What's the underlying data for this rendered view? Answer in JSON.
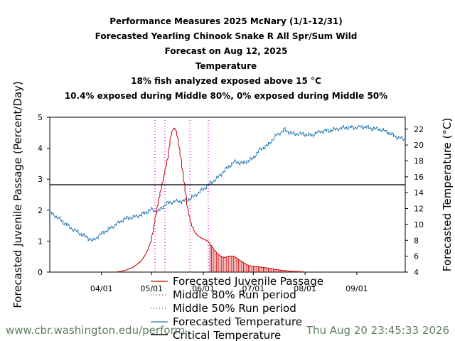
{
  "chart_data": {
    "type": "line",
    "title_lines": [
      "Performance Measures 2025 McNary (1/1-12/31)",
      "Forecasted Yearling Chinook Snake R All Spr/Sum Wild",
      "Forecast on Aug 12, 2025",
      "Temperature",
      "18% fish analyzed exposed above 15 °C",
      "10.4% exposed during Middle 80%, 0% exposed during Middle 50%"
    ],
    "ylabel_left": "Forecasted Juvenile Passage (Percent/Day)",
    "ylabel_right": "Forecasted Temperature (°C)",
    "x_domain": [
      "2025-03-01",
      "2025-09-30"
    ],
    "x_ticks": [
      "04/01",
      "05/01",
      "06/01",
      "07/01",
      "08/01",
      "09/01"
    ],
    "ylim_left": [
      0,
      5
    ],
    "y_ticks_left": [
      "0",
      "1",
      "2",
      "3",
      "4",
      "5"
    ],
    "ylim_right": [
      4,
      23.5
    ],
    "y_ticks_right": [
      "4",
      "6",
      "8",
      "10",
      "12",
      "14",
      "16",
      "18",
      "20",
      "22"
    ],
    "critical_temperature": 15,
    "middle_80_run_period": [
      "2025-05-03",
      "2025-06-04"
    ],
    "middle_50_run_period": [
      "2025-05-09",
      "2025-05-24"
    ],
    "series": [
      {
        "name": "Forecasted Juvenile Passage",
        "color": "#cc0000",
        "x": [
          "2025-04-10",
          "2025-04-15",
          "2025-04-20",
          "2025-04-25",
          "2025-04-28",
          "2025-05-01",
          "2025-05-03",
          "2025-05-05",
          "2025-05-07",
          "2025-05-09",
          "2025-05-11",
          "2025-05-12",
          "2025-05-13",
          "2025-05-14",
          "2025-05-15",
          "2025-05-16",
          "2025-05-17",
          "2025-05-19",
          "2025-05-21",
          "2025-05-23",
          "2025-05-25",
          "2025-05-27",
          "2025-05-29",
          "2025-05-31",
          "2025-06-02",
          "2025-06-04",
          "2025-06-06",
          "2025-06-08",
          "2025-06-10",
          "2025-06-12",
          "2025-06-14",
          "2025-06-16",
          "2025-06-18",
          "2025-06-20",
          "2025-06-22",
          "2025-06-24",
          "2025-06-26",
          "2025-06-28",
          "2025-06-30",
          "2025-07-03",
          "2025-07-06",
          "2025-07-10",
          "2025-07-14",
          "2025-07-18",
          "2025-07-22",
          "2025-07-26",
          "2025-07-31"
        ],
        "values": [
          0.0,
          0.05,
          0.15,
          0.35,
          0.6,
          1.0,
          1.6,
          2.2,
          2.7,
          3.2,
          3.7,
          4.1,
          4.45,
          4.6,
          4.65,
          4.55,
          4.3,
          3.6,
          2.8,
          2.0,
          1.55,
          1.3,
          1.17,
          1.1,
          1.05,
          1.0,
          0.85,
          0.7,
          0.58,
          0.5,
          0.47,
          0.5,
          0.52,
          0.5,
          0.42,
          0.35,
          0.28,
          0.22,
          0.19,
          0.18,
          0.16,
          0.13,
          0.09,
          0.06,
          0.04,
          0.02,
          0.01
        ]
      },
      {
        "name": "Middle 80% Run period",
        "color": "#cc00cc"
      },
      {
        "name": "Middle 50% Run period",
        "color": "#cc00cc"
      },
      {
        "name": "Forecasted Temperature",
        "color": "#1f78b4",
        "x": [
          "2025-03-01",
          "2025-03-05",
          "2025-03-10",
          "2025-03-15",
          "2025-03-20",
          "2025-03-25",
          "2025-03-27",
          "2025-03-29",
          "2025-04-01",
          "2025-04-05",
          "2025-04-10",
          "2025-04-15",
          "2025-04-20",
          "2025-04-25",
          "2025-05-01",
          "2025-05-05",
          "2025-05-10",
          "2025-05-15",
          "2025-05-20",
          "2025-05-25",
          "2025-06-01",
          "2025-06-05",
          "2025-06-10",
          "2025-06-15",
          "2025-06-20",
          "2025-06-25",
          "2025-07-01",
          "2025-07-05",
          "2025-07-10",
          "2025-07-15",
          "2025-07-20",
          "2025-07-25",
          "2025-07-31",
          "2025-08-05",
          "2025-08-10",
          "2025-08-15",
          "2025-08-20",
          "2025-08-25",
          "2025-08-31",
          "2025-09-05",
          "2025-09-10",
          "2025-09-15",
          "2025-09-20",
          "2025-09-25",
          "2025-09-30"
        ],
        "values": [
          11.6,
          11.0,
          10.2,
          9.4,
          8.8,
          8.2,
          7.9,
          8.3,
          8.8,
          9.3,
          10.0,
          10.7,
          10.9,
          11.2,
          11.9,
          11.6,
          12.6,
          12.9,
          12.9,
          13.3,
          14.4,
          15.1,
          15.9,
          17.0,
          17.9,
          17.7,
          18.3,
          19.4,
          20.0,
          21.2,
          21.9,
          21.4,
          21.4,
          21.2,
          21.7,
          21.8,
          22.0,
          22.2,
          22.2,
          22.3,
          22.1,
          22.0,
          21.6,
          21.0,
          20.7
        ]
      },
      {
        "name": "Critical Temperature",
        "color": "#000000"
      }
    ]
  },
  "footer": {
    "url": "www.cbr.washington.edu/perform",
    "timestamp": "Thu Aug 20 23:45:33 2026"
  }
}
